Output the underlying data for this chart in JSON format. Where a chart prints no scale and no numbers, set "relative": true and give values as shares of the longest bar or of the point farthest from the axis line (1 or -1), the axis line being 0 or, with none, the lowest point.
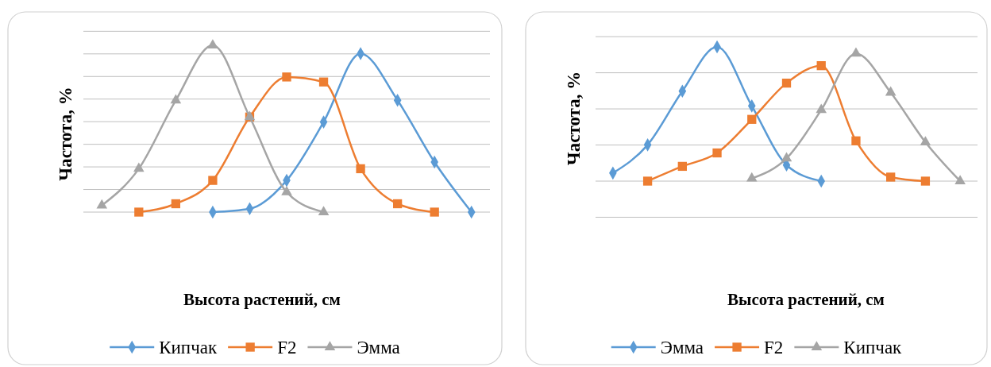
{
  "chart_data": [
    {
      "type": "line",
      "xlabel": "Высота растений, см",
      "ylabel": "Частота, %",
      "relative": true,
      "grid": "y",
      "legend": "bottom",
      "tick_labels": false,
      "categories": [
        null,
        null,
        null,
        null,
        null,
        null,
        null,
        null,
        null,
        null,
        null
      ],
      "series": [
        {
          "name": "Кипчак",
          "color": "#5b9bd5",
          "marker": "diamond",
          "values": [
            null,
            null,
            null,
            0,
            0.02,
            0.19,
            0.54,
            0.95,
            0.67,
            0.3,
            0
          ]
        },
        {
          "name": "F2",
          "color": "#ed7d31",
          "marker": "square",
          "values": [
            null,
            0,
            0.05,
            0.19,
            0.57,
            0.81,
            0.78,
            0.26,
            0.05,
            0,
            null
          ]
        },
        {
          "name": "Эмма",
          "color": "#a5a5a5",
          "marker": "triangle",
          "values": [
            0.04,
            0.26,
            0.67,
            1,
            0.57,
            0.12,
            0,
            null,
            null,
            null,
            null
          ]
        }
      ]
    },
    {
      "type": "line",
      "xlabel": "Высота растений, см",
      "ylabel": "Частота, %",
      "relative": true,
      "grid": "y",
      "legend": "bottom",
      "tick_labels": false,
      "categories": [
        null,
        null,
        null,
        null,
        null,
        null,
        null,
        null,
        null,
        null,
        null
      ],
      "series": [
        {
          "name": "Эмма",
          "color": "#5b9bd5",
          "marker": "diamond",
          "values": [
            0.06,
            0.27,
            0.67,
            1,
            0.56,
            0.12,
            0,
            null,
            null,
            null,
            null
          ]
        },
        {
          "name": "F2",
          "color": "#ed7d31",
          "marker": "square",
          "values": [
            null,
            0,
            0.11,
            0.21,
            0.46,
            0.73,
            0.86,
            0.3,
            0.03,
            0,
            null
          ]
        },
        {
          "name": "Кипчак",
          "color": "#a5a5a5",
          "marker": "triangle",
          "values": [
            null,
            null,
            null,
            null,
            0.02,
            0.17,
            0.53,
            0.95,
            0.66,
            0.29,
            0
          ]
        }
      ]
    }
  ]
}
